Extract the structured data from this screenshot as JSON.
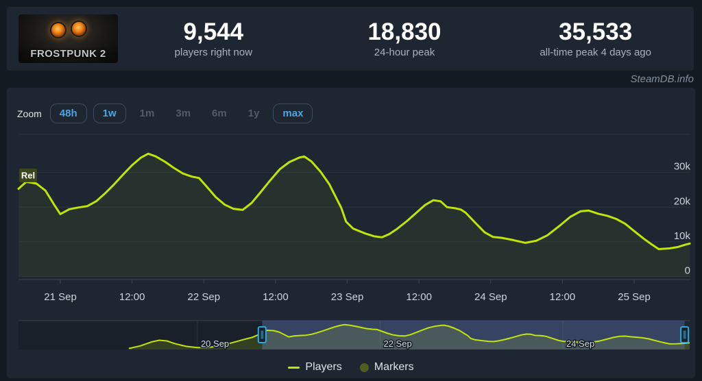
{
  "header": {
    "game_title": "FROSTPUNK 2",
    "stats": [
      {
        "value": "9,544",
        "label": "players right now"
      },
      {
        "value": "18,830",
        "label": "24-hour peak"
      },
      {
        "value": "35,533",
        "label": "all-time peak 4 days ago"
      }
    ]
  },
  "watermark": "SteamDB.info",
  "toolbar": {
    "zoom_label": "Zoom",
    "buttons": [
      {
        "label": "48h",
        "enabled": true
      },
      {
        "label": "1w",
        "enabled": true
      },
      {
        "label": "1m",
        "enabled": false
      },
      {
        "label": "3m",
        "enabled": false
      },
      {
        "label": "6m",
        "enabled": false
      },
      {
        "label": "1y",
        "enabled": false
      },
      {
        "label": "max",
        "enabled": true
      }
    ]
  },
  "legend": [
    {
      "label": "Players",
      "swatch": "line",
      "color": "#c0e606"
    },
    {
      "label": "Markers",
      "swatch": "circle",
      "color": "#4f5d22"
    }
  ],
  "colors": {
    "page_bg": "#141a22",
    "panel_bg": "#1e2731",
    "line": "#c0e606",
    "line_fill": "rgba(192,230,6,0.06)",
    "nav_fill": "rgba(192,230,6,0.20)",
    "nav_mask": "rgba(95,112,180,0.38)",
    "nav_dim": "rgba(5,8,12,0.18)",
    "handle_border": "#2ea9dc",
    "handle_fill": "#18222c",
    "gridline": "#2b3442",
    "axis_line": "#3a4654",
    "tick_text": "#ccd3da",
    "rel_marker_bg": "#3e471d",
    "blue_button_text": "#4aa5e4"
  },
  "chart_data": {
    "type": "line",
    "title": "Frostpunk 2 — concurrent players",
    "series_name": "Players",
    "x_unit": "hours since 19 Sep 00:00",
    "main_x_range": [
      41,
      153.4
    ],
    "y_range": [
      0,
      41000
    ],
    "grid": true,
    "legend_position": "bottom-center",
    "y_ticks": [
      {
        "v": 0,
        "label": "0"
      },
      {
        "v": 10000,
        "label": "10k"
      },
      {
        "v": 20000,
        "label": "20k"
      },
      {
        "v": 30000,
        "label": "30k"
      }
    ],
    "x_ticks": [
      {
        "t": 48,
        "label": "21 Sep"
      },
      {
        "t": 60,
        "label": "12:00"
      },
      {
        "t": 72,
        "label": "22 Sep"
      },
      {
        "t": 84,
        "label": "12:00"
      },
      {
        "t": 96,
        "label": "23 Sep"
      },
      {
        "t": 108,
        "label": "12:00"
      },
      {
        "t": 120,
        "label": "24 Sep"
      },
      {
        "t": 132,
        "label": "12:00"
      },
      {
        "t": 144,
        "label": "25 Sep"
      }
    ],
    "release_marker": {
      "t": 41,
      "label": "Rel"
    },
    "navigator": {
      "x_range": [
        -23,
        153.5
      ],
      "selected_range": [
        41,
        152
      ],
      "x_ticks": [
        {
          "t": 24,
          "label": "20 Sep"
        },
        {
          "t": 72,
          "label": "22 Sep"
        },
        {
          "t": 120,
          "label": "24 Sep"
        }
      ]
    },
    "points": [
      [
        6,
        1500
      ],
      [
        9,
        5200
      ],
      [
        12,
        10800
      ],
      [
        14,
        13200
      ],
      [
        16,
        12200
      ],
      [
        18,
        8500
      ],
      [
        21,
        4500
      ],
      [
        24,
        2600
      ],
      [
        27,
        2900
      ],
      [
        30,
        5500
      ],
      [
        33,
        9500
      ],
      [
        36,
        14000
      ],
      [
        38.5,
        17500
      ],
      [
        40,
        21000
      ],
      [
        41,
        25300
      ],
      [
        42.3,
        27300
      ],
      [
        44,
        26800
      ],
      [
        45.5,
        24800
      ],
      [
        47,
        20600
      ],
      [
        48,
        18000
      ],
      [
        49.5,
        19400
      ],
      [
        51,
        19900
      ],
      [
        52.5,
        20300
      ],
      [
        54,
        21700
      ],
      [
        55.5,
        24000
      ],
      [
        57,
        26600
      ],
      [
        58.5,
        29400
      ],
      [
        60,
        32100
      ],
      [
        61.5,
        34300
      ],
      [
        62.7,
        35400
      ],
      [
        64,
        34600
      ],
      [
        65.5,
        33100
      ],
      [
        67,
        31300
      ],
      [
        68.5,
        29700
      ],
      [
        70,
        28800
      ],
      [
        71.2,
        28400
      ],
      [
        72.5,
        25900
      ],
      [
        74,
        22900
      ],
      [
        75.5,
        20700
      ],
      [
        77,
        19500
      ],
      [
        78.5,
        19200
      ],
      [
        80,
        21200
      ],
      [
        81.5,
        24300
      ],
      [
        83,
        27500
      ],
      [
        84.7,
        30900
      ],
      [
        86.3,
        33000
      ],
      [
        88,
        34300
      ],
      [
        88.8,
        34600
      ],
      [
        90,
        33200
      ],
      [
        91.5,
        30300
      ],
      [
        93,
        26600
      ],
      [
        94.2,
        22500
      ],
      [
        95,
        19800
      ],
      [
        95.8,
        15800
      ],
      [
        97,
        13800
      ],
      [
        99,
        12400
      ],
      [
        100.5,
        11600
      ],
      [
        101.8,
        11300
      ],
      [
        103,
        12200
      ],
      [
        104.3,
        13700
      ],
      [
        106,
        16000
      ],
      [
        107.5,
        18300
      ],
      [
        109,
        20600
      ],
      [
        110.4,
        22000
      ],
      [
        111.6,
        21700
      ],
      [
        112.7,
        20000
      ],
      [
        114,
        19700
      ],
      [
        115,
        19300
      ],
      [
        115.8,
        18400
      ],
      [
        117.3,
        15700
      ],
      [
        119,
        12700
      ],
      [
        120.4,
        11400
      ],
      [
        122,
        11100
      ],
      [
        123.8,
        10500
      ],
      [
        125.8,
        9700
      ],
      [
        127.6,
        10300
      ],
      [
        129.5,
        11900
      ],
      [
        131.5,
        14600
      ],
      [
        133.3,
        17200
      ],
      [
        135,
        18800
      ],
      [
        136.4,
        19000
      ],
      [
        138,
        18100
      ],
      [
        139.5,
        17500
      ],
      [
        141,
        16600
      ],
      [
        142.5,
        15200
      ],
      [
        144,
        13100
      ],
      [
        145.6,
        10900
      ],
      [
        146.8,
        9400
      ],
      [
        148.1,
        7900
      ],
      [
        149.9,
        8100
      ],
      [
        151.3,
        8500
      ],
      [
        152.6,
        9200
      ],
      [
        153.3,
        9500
      ]
    ]
  }
}
